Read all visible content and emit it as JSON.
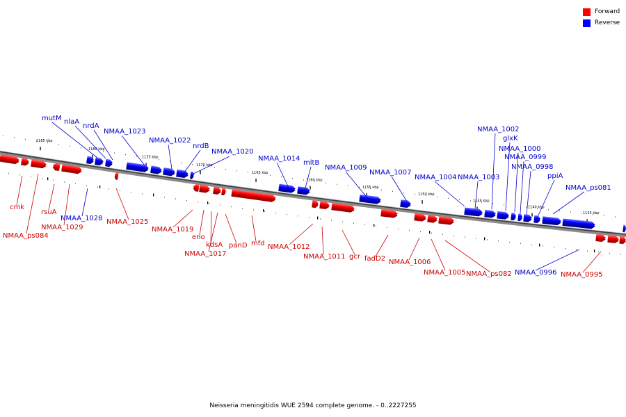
{
  "caption": "Neisseria meningitidis WUE 2594 complete genome. - 0..2227255",
  "legend": [
    {
      "label": "Forward",
      "color": "#ff0000"
    },
    {
      "label": "Reverse",
      "color": "#0000ff"
    }
  ],
  "ticks": [
    "1185 kbp",
    "1180 kbp",
    "1175 kbp",
    "1170 kbp",
    "1165 kbp",
    "1160 kbp",
    "1155 kbp",
    "1150 kbp",
    "1145 kbp",
    "1140 kbp",
    "1135 kbp"
  ],
  "genes": [
    {
      "label": "mutM",
      "strand": "reverse"
    },
    {
      "label": "nlaA",
      "strand": "reverse"
    },
    {
      "label": "nrdA",
      "strand": "reverse"
    },
    {
      "label": "NMAA_1023",
      "strand": "reverse"
    },
    {
      "label": "NMAA_1022",
      "strand": "reverse"
    },
    {
      "label": "nrdB",
      "strand": "reverse"
    },
    {
      "label": "NMAA_1020",
      "strand": "reverse"
    },
    {
      "label": "NMAA_1014",
      "strand": "reverse"
    },
    {
      "label": "mltB",
      "strand": "reverse"
    },
    {
      "label": "NMAA_1009",
      "strand": "reverse"
    },
    {
      "label": "NMAA_1007",
      "strand": "reverse"
    },
    {
      "label": "NMAA_1004",
      "strand": "reverse"
    },
    {
      "label": "NMAA_1003",
      "strand": "reverse"
    },
    {
      "label": "NMAA_1002",
      "strand": "reverse"
    },
    {
      "label": "glxK",
      "strand": "reverse"
    },
    {
      "label": "NMAA_1000",
      "strand": "reverse"
    },
    {
      "label": "NMAA_0999",
      "strand": "reverse"
    },
    {
      "label": "NMAA_0998",
      "strand": "reverse"
    },
    {
      "label": "ppiA",
      "strand": "reverse"
    },
    {
      "label": "NMAA_ps081",
      "strand": "reverse"
    },
    {
      "label": "NMAA_1028",
      "strand": "reverse"
    },
    {
      "label": "NMAA_0996",
      "strand": "reverse"
    },
    {
      "label": "cmk",
      "strand": "forward"
    },
    {
      "label": "NMAA_ps084",
      "strand": "forward"
    },
    {
      "label": "rsuA",
      "strand": "forward"
    },
    {
      "label": "NMAA_1029",
      "strand": "forward"
    },
    {
      "label": "NMAA_1025",
      "strand": "forward"
    },
    {
      "label": "NMAA_1019",
      "strand": "forward"
    },
    {
      "label": "eno",
      "strand": "forward"
    },
    {
      "label": "kdsA",
      "strand": "forward"
    },
    {
      "label": "NMAA_1017",
      "strand": "forward"
    },
    {
      "label": "panD",
      "strand": "forward"
    },
    {
      "label": "mfd",
      "strand": "forward"
    },
    {
      "label": "NMAA_1012",
      "strand": "forward"
    },
    {
      "label": "NMAA_1011",
      "strand": "forward"
    },
    {
      "label": "gcr",
      "strand": "forward"
    },
    {
      "label": "fadD2",
      "strand": "forward"
    },
    {
      "label": "NMAA_1006",
      "strand": "forward"
    },
    {
      "label": "NMAA_1005",
      "strand": "forward"
    },
    {
      "label": "NMAA_ps082",
      "strand": "forward"
    },
    {
      "label": "NMAA_0995",
      "strand": "forward"
    }
  ]
}
